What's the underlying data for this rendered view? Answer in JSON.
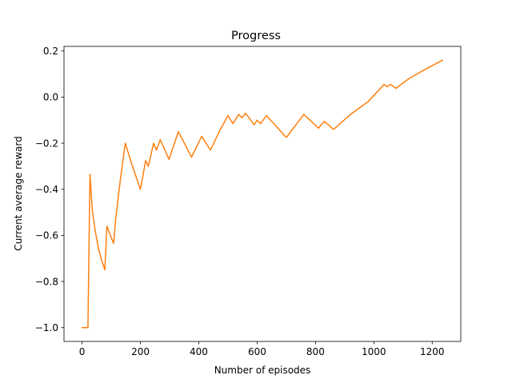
{
  "chart_data": {
    "type": "line",
    "title": "Progress",
    "xlabel": "Number of episodes",
    "ylabel": "Current average reward",
    "xlim": [
      -62,
      1298
    ],
    "ylim": [
      -1.06,
      0.22
    ],
    "xticks": [
      0,
      200,
      400,
      600,
      800,
      1000,
      1200
    ],
    "yticks": [
      -1.0,
      -0.8,
      -0.6,
      -0.4,
      -0.2,
      0.0,
      0.2
    ],
    "ytick_labels": [
      "−1.0",
      "−0.8",
      "−0.6",
      "−0.4",
      "−0.2",
      "0.0",
      "0.2"
    ],
    "grid": false,
    "series": [
      {
        "color": "#ff7f0e",
        "points": [
          [
            0,
            -1.0
          ],
          [
            20,
            -1.0
          ],
          [
            27,
            -0.335
          ],
          [
            35,
            -0.49
          ],
          [
            45,
            -0.58
          ],
          [
            55,
            -0.65
          ],
          [
            65,
            -0.7
          ],
          [
            78,
            -0.75
          ],
          [
            85,
            -0.56
          ],
          [
            100,
            -0.61
          ],
          [
            108,
            -0.635
          ],
          [
            115,
            -0.53
          ],
          [
            130,
            -0.37
          ],
          [
            148,
            -0.2
          ],
          [
            170,
            -0.29
          ],
          [
            200,
            -0.4
          ],
          [
            218,
            -0.275
          ],
          [
            227,
            -0.3
          ],
          [
            245,
            -0.2
          ],
          [
            255,
            -0.23
          ],
          [
            268,
            -0.185
          ],
          [
            298,
            -0.27
          ],
          [
            330,
            -0.15
          ],
          [
            375,
            -0.26
          ],
          [
            410,
            -0.17
          ],
          [
            440,
            -0.23
          ],
          [
            470,
            -0.15
          ],
          [
            500,
            -0.08
          ],
          [
            517,
            -0.115
          ],
          [
            537,
            -0.075
          ],
          [
            548,
            -0.09
          ],
          [
            560,
            -0.07
          ],
          [
            590,
            -0.12
          ],
          [
            600,
            -0.1
          ],
          [
            612,
            -0.115
          ],
          [
            632,
            -0.08
          ],
          [
            700,
            -0.175
          ],
          [
            760,
            -0.075
          ],
          [
            810,
            -0.135
          ],
          [
            830,
            -0.105
          ],
          [
            862,
            -0.14
          ],
          [
            920,
            -0.075
          ],
          [
            980,
            -0.02
          ],
          [
            1035,
            0.055
          ],
          [
            1045,
            0.045
          ],
          [
            1057,
            0.055
          ],
          [
            1075,
            0.038
          ],
          [
            1120,
            0.08
          ],
          [
            1180,
            0.123
          ],
          [
            1235,
            0.16
          ]
        ]
      }
    ]
  }
}
